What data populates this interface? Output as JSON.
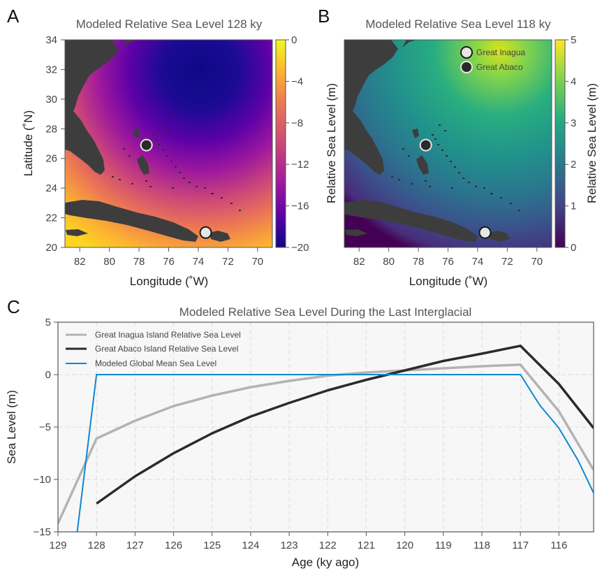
{
  "panels": {
    "a": {
      "letter": "A",
      "title": "Modeled Relative Sea Level 128 ky",
      "xlabel": "Longitude (˚W)",
      "ylabel": "Latitude (˚N)",
      "xticks": [
        "82",
        "80",
        "78",
        "76",
        "74",
        "72",
        "70"
      ],
      "yticks": [
        "34",
        "32",
        "30",
        "28",
        "26",
        "24",
        "22",
        "20"
      ],
      "colorbar_ticks": [
        "0",
        "−4",
        "−8",
        "−12",
        "−16",
        "−20"
      ],
      "colorbar_range": [
        -20,
        0
      ],
      "colormap": "plasma"
    },
    "b": {
      "letter": "B",
      "title": "Modeled Relative Sea Level 118 ky",
      "ylabel": "Relative Sea Level (m)",
      "xlabel": "Longitude (˚W)",
      "xticks": [
        "82",
        "80",
        "78",
        "76",
        "74",
        "72",
        "70"
      ],
      "colorbar_ticks": [
        "5",
        "4",
        "3",
        "2",
        "1",
        "0"
      ],
      "colorbar_range": [
        0,
        5
      ],
      "colorbar_label": "Relative Sea Level (m)",
      "colormap": "viridis",
      "legend": [
        {
          "label": "Great Inagua",
          "color": "#e6e6e6"
        },
        {
          "label": "Great Abaco",
          "color": "#2a2a2a"
        }
      ]
    },
    "c": {
      "letter": "C"
    }
  },
  "map_extent": {
    "lon": [
      83,
      69
    ],
    "lat": [
      20,
      34
    ]
  },
  "sites": [
    {
      "name": "Great Inagua",
      "lon": 73.5,
      "lat": 21.0,
      "color": "#e6e6e6"
    },
    {
      "name": "Great Abaco",
      "lon": 77.5,
      "lat": 26.9,
      "color": "#2a2a2a"
    }
  ],
  "colors": {
    "land": "#3d3d3d",
    "panel_bg": "#f7f7f7",
    "inagua_line": "#b3b3b3",
    "abaco_line": "#2b2b2b",
    "gmsl_line": "#0a88d3"
  },
  "chart_data": {
    "type": "line",
    "title": "Modeled Relative Sea Level During the Last Interglacial",
    "xlabel": "Age (ky ago)",
    "ylabel": "Sea Level (m)",
    "xlim": [
      129,
      115.1
    ],
    "ylim": [
      -15,
      5
    ],
    "xticks": [
      "129",
      "128",
      "127",
      "126",
      "125",
      "124",
      "123",
      "122",
      "121",
      "120",
      "119",
      "118",
      "117",
      "116"
    ],
    "yticks": [
      "5",
      "0",
      "−5",
      "−10",
      "−15"
    ],
    "grid": true,
    "legend_position": "top-left",
    "series": [
      {
        "name": "Great Inagua Island Relative Sea Level",
        "x": [
          129,
          128,
          127,
          126,
          125,
          124,
          123,
          122,
          121,
          120,
          119,
          118,
          117,
          116,
          115.1
        ],
        "y": [
          -14.2,
          -6.1,
          -4.4,
          -3.0,
          -2.0,
          -1.2,
          -0.6,
          -0.1,
          0.2,
          0.4,
          0.6,
          0.8,
          0.95,
          -3.5,
          -9.1
        ]
      },
      {
        "name": "Great Abaco Island Relative Sea Level",
        "x": [
          128,
          127,
          126,
          125,
          124,
          123,
          122,
          121,
          120,
          119,
          118,
          117,
          116,
          115.1
        ],
        "y": [
          -12.3,
          -9.7,
          -7.5,
          -5.6,
          -4.0,
          -2.7,
          -1.5,
          -0.5,
          0.4,
          1.3,
          2.0,
          2.75,
          -0.9,
          -5.1
        ]
      },
      {
        "name": "Modeled Global Mean Sea Level",
        "x": [
          128.5,
          128,
          127,
          126,
          125,
          124,
          123,
          122,
          121,
          120,
          119,
          118,
          117,
          116.5,
          116,
          115.5,
          115.1
        ],
        "y": [
          -15,
          0,
          0,
          0,
          0,
          0,
          0,
          0,
          0,
          0,
          0,
          0,
          0,
          -2.9,
          -5.1,
          -8.2,
          -11.3
        ]
      }
    ]
  }
}
